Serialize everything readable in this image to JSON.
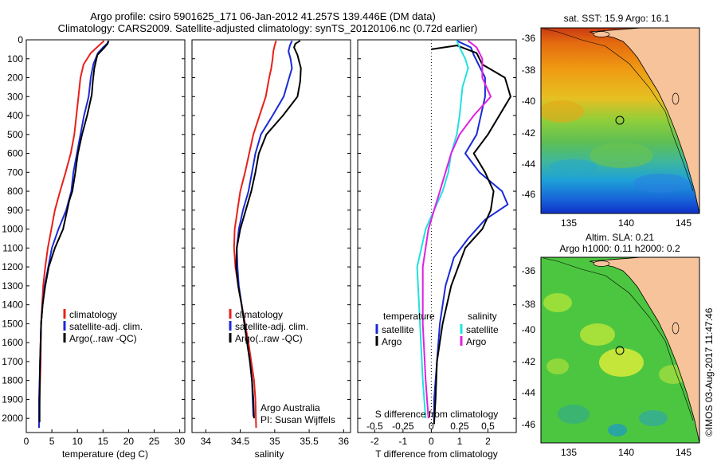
{
  "header": {
    "line1": "Argo profile: csiro 5901625_171 06-Jan-2012 41.257S 139.446E (DM data)",
    "line2": "Climatology: CARS2009. Satellite-adjusted climatology: synTS_20120106.nc (0.72d earlier)"
  },
  "map_titles": {
    "sst": "sat. SST: 15.9 Argo: 16.1",
    "sla_line1": "Altim. SLA: 0.21",
    "sla_line2": "Argo h1000: 0.11 h2000: 0.2"
  },
  "credit": "Argo Australia",
  "pi": "PI: Susan Wijffels",
  "watermark": "©IMOS 03-Aug-2017 11:47:46",
  "colors": {
    "climatology": "#e8201a",
    "satellite": "#1a2ad6",
    "argo": "#000000",
    "salinity_sat": "#22e0e0",
    "salinity_argo": "#e020e0",
    "land": "#f7c39a"
  },
  "chart_data": [
    {
      "type": "line",
      "panel": "temperature",
      "xlabel": "temperature (deg C)",
      "ylabel": "",
      "xlim": [
        0,
        31
      ],
      "ylim": [
        2075,
        0
      ],
      "xticks": [
        "0",
        "5",
        "10",
        "15",
        "20",
        "25",
        "30"
      ],
      "yticks": [
        "0",
        "100",
        "200",
        "300",
        "400",
        "500",
        "600",
        "700",
        "800",
        "900",
        "1000",
        "1100",
        "1200",
        "1300",
        "1400",
        "1500",
        "1600",
        "1700",
        "1800",
        "1900",
        "2000"
      ],
      "legend": [
        "climatology",
        "satellite-adj. clim.",
        "Argo(..raw -QC)"
      ],
      "series": [
        {
          "name": "climatology",
          "color": "#e8201a",
          "points": [
            [
              15.2,
              5
            ],
            [
              14.6,
              20
            ],
            [
              13.8,
              40
            ],
            [
              12.6,
              70
            ],
            [
              11.2,
              130
            ],
            [
              10.6,
              200
            ],
            [
              10.2,
              300
            ],
            [
              9.8,
              400
            ],
            [
              9.4,
              500
            ],
            [
              8.7,
              600
            ],
            [
              7.7,
              700
            ],
            [
              6.6,
              800
            ],
            [
              5.6,
              900
            ],
            [
              4.9,
              1000
            ],
            [
              4.2,
              1100
            ],
            [
              3.7,
              1200
            ],
            [
              3.3,
              1300
            ],
            [
              3.1,
              1400
            ],
            [
              2.9,
              1500
            ],
            [
              2.8,
              1700
            ],
            [
              2.6,
              1900
            ],
            [
              2.5,
              2050
            ]
          ]
        },
        {
          "name": "satellite-adj. clim.",
          "color": "#1a2ad6",
          "points": [
            [
              16.1,
              5
            ],
            [
              15.8,
              20
            ],
            [
              15.0,
              40
            ],
            [
              14.0,
              70
            ],
            [
              13.1,
              130
            ],
            [
              12.6,
              200
            ],
            [
              12.2,
              300
            ],
            [
              11.3,
              400
            ],
            [
              10.6,
              500
            ],
            [
              9.9,
              600
            ],
            [
              9.2,
              700
            ],
            [
              8.8,
              800
            ],
            [
              7.8,
              900
            ],
            [
              6.3,
              1000
            ],
            [
              5.0,
              1100
            ],
            [
              4.3,
              1200
            ],
            [
              3.6,
              1300
            ],
            [
              3.2,
              1400
            ],
            [
              2.9,
              1500
            ],
            [
              2.7,
              1700
            ],
            [
              2.5,
              1900
            ],
            [
              2.5,
              2050
            ]
          ]
        },
        {
          "name": "Argo(..raw -QC)",
          "color": "#000000",
          "points": [
            [
              16.1,
              5
            ],
            [
              15.9,
              20
            ],
            [
              15.3,
              40
            ],
            [
              13.9,
              80
            ],
            [
              13.3,
              150
            ],
            [
              13.0,
              220
            ],
            [
              12.8,
              290
            ],
            [
              11.9,
              400
            ],
            [
              10.9,
              500
            ],
            [
              10.1,
              600
            ],
            [
              9.6,
              700
            ],
            [
              9.0,
              800
            ],
            [
              8.4,
              850
            ],
            [
              7.2,
              1000
            ],
            [
              5.6,
              1100
            ],
            [
              4.4,
              1200
            ],
            [
              3.7,
              1300
            ],
            [
              3.2,
              1400
            ],
            [
              2.9,
              1500
            ],
            [
              2.7,
              1700
            ],
            [
              2.6,
              1900
            ],
            [
              2.6,
              2020
            ]
          ]
        }
      ]
    },
    {
      "type": "line",
      "panel": "salinity",
      "xlabel": "salinity",
      "ylabel": "",
      "xlim": [
        33.8,
        36.1
      ],
      "ylim": [
        2075,
        0
      ],
      "xticks": [
        "34",
        "34.5",
        "35",
        "35.5",
        "36"
      ],
      "legend": [
        "climatology",
        "satellite-adj. clim.",
        "Argo(..raw -QC)"
      ],
      "series": [
        {
          "name": "climatology",
          "color": "#e8201a",
          "points": [
            [
              35.02,
              5
            ],
            [
              35.0,
              30
            ],
            [
              34.98,
              60
            ],
            [
              34.97,
              100
            ],
            [
              34.95,
              150
            ],
            [
              34.92,
              200
            ],
            [
              34.87,
              300
            ],
            [
              34.78,
              400
            ],
            [
              34.69,
              500
            ],
            [
              34.63,
              600
            ],
            [
              34.57,
              700
            ],
            [
              34.5,
              800
            ],
            [
              34.46,
              900
            ],
            [
              34.42,
              1000
            ],
            [
              34.41,
              1100
            ],
            [
              34.43,
              1200
            ],
            [
              34.47,
              1300
            ],
            [
              34.52,
              1400
            ],
            [
              34.57,
              1500
            ],
            [
              34.62,
              1600
            ],
            [
              34.66,
              1700
            ],
            [
              34.7,
              1800
            ],
            [
              34.72,
              1900
            ],
            [
              34.73,
              2050
            ]
          ]
        },
        {
          "name": "satellite-adj. clim.",
          "color": "#1a2ad6",
          "points": [
            [
              35.25,
              5
            ],
            [
              35.22,
              30
            ],
            [
              35.2,
              60
            ],
            [
              35.23,
              100
            ],
            [
              35.25,
              150
            ],
            [
              35.21,
              200
            ],
            [
              35.13,
              300
            ],
            [
              34.97,
              400
            ],
            [
              34.8,
              500
            ],
            [
              34.72,
              600
            ],
            [
              34.67,
              700
            ],
            [
              34.62,
              800
            ],
            [
              34.54,
              900
            ],
            [
              34.48,
              1000
            ],
            [
              34.45,
              1100
            ],
            [
              34.46,
              1200
            ],
            [
              34.48,
              1300
            ],
            [
              34.52,
              1400
            ],
            [
              34.56,
              1500
            ],
            [
              34.6,
              1600
            ],
            [
              34.64,
              1700
            ],
            [
              34.67,
              1800
            ],
            [
              34.68,
              1900
            ],
            [
              34.69,
              1990
            ]
          ]
        },
        {
          "name": "Argo(..raw -QC)",
          "color": "#000000",
          "points": [
            [
              35.37,
              5
            ],
            [
              35.3,
              20
            ],
            [
              35.28,
              40
            ],
            [
              35.33,
              80
            ],
            [
              35.38,
              150
            ],
            [
              35.37,
              220
            ],
            [
              35.33,
              300
            ],
            [
              35.12,
              400
            ],
            [
              34.88,
              500
            ],
            [
              34.77,
              600
            ],
            [
              34.72,
              700
            ],
            [
              34.66,
              800
            ],
            [
              34.58,
              900
            ],
            [
              34.5,
              1000
            ],
            [
              34.45,
              1100
            ],
            [
              34.44,
              1200
            ],
            [
              34.47,
              1300
            ],
            [
              34.52,
              1400
            ],
            [
              34.56,
              1500
            ],
            [
              34.6,
              1600
            ],
            [
              34.64,
              1700
            ],
            [
              34.67,
              1800
            ],
            [
              34.69,
              1900
            ],
            [
              34.7,
              2000
            ]
          ]
        }
      ]
    },
    {
      "type": "line",
      "panel": "differences",
      "xlabel": "T difference from climatology",
      "xlabel_top": "S difference from climatology",
      "xlim": [
        -2.6,
        3.0
      ],
      "ylim": [
        2075,
        0
      ],
      "xticks": [
        "-2",
        "-1",
        "0",
        "1",
        "2"
      ],
      "sticks": [
        "-0.5",
        "-0.25",
        "0",
        "0.25",
        "0.5"
      ],
      "legend_temperature": {
        "title": "temperature",
        "entries": [
          "satellite",
          "Argo"
        ]
      },
      "legend_salinity": {
        "title": "salinity",
        "entries": [
          "satellite",
          "Argo"
        ]
      },
      "series": [
        {
          "name": "satellite",
          "color": "#1a2ad6",
          "points": [
            [
              0.9,
              5
            ],
            [
              1.4,
              40
            ],
            [
              1.5,
              80
            ],
            [
              1.9,
              200
            ],
            [
              1.9,
              300
            ],
            [
              1.6,
              500
            ],
            [
              1.2,
              600
            ],
            [
              1.7,
              700
            ],
            [
              2.5,
              800
            ],
            [
              2.7,
              870
            ],
            [
              1.9,
              950
            ],
            [
              1.3,
              1050
            ],
            [
              0.8,
              1150
            ],
            [
              0.5,
              1300
            ],
            [
              0.3,
              1500
            ],
            [
              0.2,
              1700
            ],
            [
              0.1,
              1900
            ],
            [
              0.1,
              2030
            ]
          ]
        },
        {
          "name": "Argo",
          "color": "#000000",
          "points": [
            [
              0.0,
              50
            ],
            [
              0.9,
              30
            ],
            [
              1.6,
              70
            ],
            [
              1.8,
              130
            ],
            [
              2.6,
              200
            ],
            [
              2.8,
              300
            ],
            [
              2.0,
              500
            ],
            [
              1.5,
              600
            ],
            [
              1.9,
              700
            ],
            [
              2.2,
              800
            ],
            [
              2.1,
              900
            ],
            [
              1.8,
              1000
            ],
            [
              1.2,
              1100
            ],
            [
              0.7,
              1300
            ],
            [
              0.4,
              1500
            ],
            [
              0.2,
              1700
            ],
            [
              0.15,
              1900
            ],
            [
              0.1,
              2030
            ]
          ]
        },
        {
          "name": "satellite",
          "axis": "salinity",
          "color": "#22e0e0",
          "points": [
            [
              0.9,
              5
            ],
            [
              1.0,
              40
            ],
            [
              1.2,
              100
            ],
            [
              1.3,
              150
            ],
            [
              1.1,
              250
            ],
            [
              1.0,
              400
            ],
            [
              0.9,
              500
            ],
            [
              0.7,
              600
            ],
            [
              0.6,
              700
            ],
            [
              0.4,
              800
            ],
            [
              0.1,
              900
            ],
            [
              -0.2,
              1000
            ],
            [
              -0.5,
              1200
            ],
            [
              -0.4,
              1500
            ],
            [
              -0.3,
              1800
            ],
            [
              -0.2,
              2000
            ]
          ]
        },
        {
          "name": "Argo",
          "axis": "salinity",
          "color": "#e020e0",
          "points": [
            [
              1.3,
              5
            ],
            [
              1.6,
              40
            ],
            [
              1.8,
              100
            ],
            [
              1.8,
              200
            ],
            [
              2.1,
              300
            ],
            [
              1.5,
              400
            ],
            [
              1.0,
              500
            ],
            [
              0.7,
              600
            ],
            [
              0.5,
              700
            ],
            [
              0.3,
              800
            ],
            [
              0.1,
              900
            ],
            [
              -0.1,
              1000
            ],
            [
              -0.3,
              1200
            ],
            [
              -0.3,
              1500
            ],
            [
              -0.2,
              1800
            ],
            [
              -0.1,
              2000
            ]
          ]
        }
      ]
    }
  ],
  "maps": [
    {
      "name": "sst",
      "xticks": [
        "135",
        "140",
        "145"
      ],
      "yticks": [
        "-36",
        "-38",
        "-40",
        "-42",
        "-44",
        "-46"
      ],
      "float_lon": 139.45,
      "float_lat": -41.26
    },
    {
      "name": "sla",
      "xticks": [
        "135",
        "140",
        "145"
      ],
      "yticks": [
        "-36",
        "-38",
        "-40",
        "-42",
        "-44",
        "-46"
      ],
      "float_lon": 139.45,
      "float_lat": -41.26
    }
  ]
}
